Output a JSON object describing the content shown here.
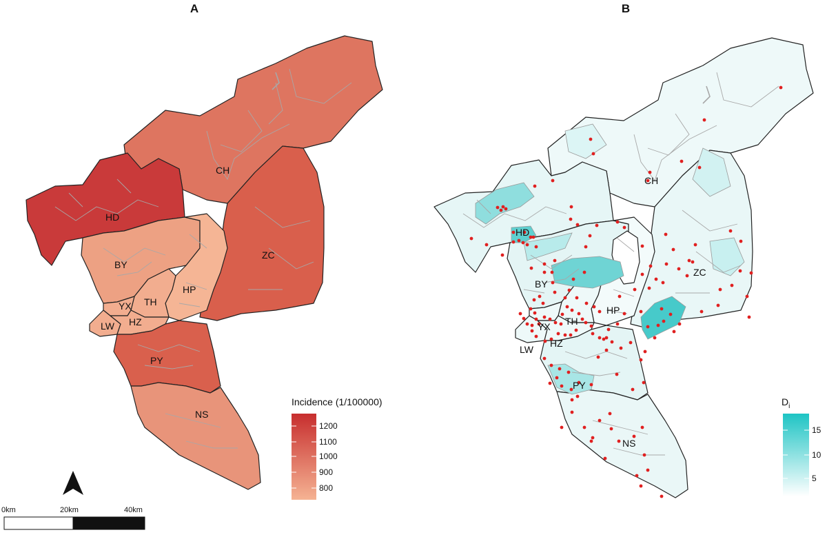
{
  "panels": {
    "A": {
      "letter": "A",
      "districts": {
        "HD": "HD",
        "CH": "CH",
        "ZC": "ZC",
        "BY": "BY",
        "HP": "HP",
        "TH": "TH",
        "YX": "YX",
        "LW": "LW",
        "HZ": "HZ",
        "PY": "PY",
        "NS": "NS"
      },
      "legend": {
        "title": "Incidence (1/100000)",
        "ticks": [
          "1200",
          "1100",
          "1000",
          "900",
          "800"
        ],
        "color_high": "#c72e2e",
        "color_low": "#f5b393"
      },
      "scale_bar": {
        "labels": [
          "0km",
          "20km",
          "40km"
        ]
      },
      "north_arrow": "north-arrow-icon"
    },
    "B": {
      "letter": "B",
      "districts": {
        "HD": "HD",
        "CH": "CH",
        "ZC": "ZC",
        "BY": "BY",
        "HP": "HP",
        "TH": "TH",
        "YX": "YX",
        "LW": "LW",
        "HZ": "HZ",
        "PY": "PY",
        "NS": "NS"
      },
      "legend": {
        "title": "D",
        "title_sub": "i",
        "ticks": [
          "15",
          "10",
          "5"
        ],
        "color_high": "#1ec4c4",
        "color_low": "#ffffff"
      },
      "point_color": "#e02020"
    }
  },
  "colors": {
    "HD": "#c93a3a",
    "CH": "#de7560",
    "ZC": "#d95f4c",
    "BY": "#eda183",
    "HP": "#f5b595",
    "core": "#f2ad8f",
    "PY": "#d9604d",
    "NS": "#e8947a",
    "border_dark": "#222222",
    "border_light": "#a8a8a8"
  }
}
